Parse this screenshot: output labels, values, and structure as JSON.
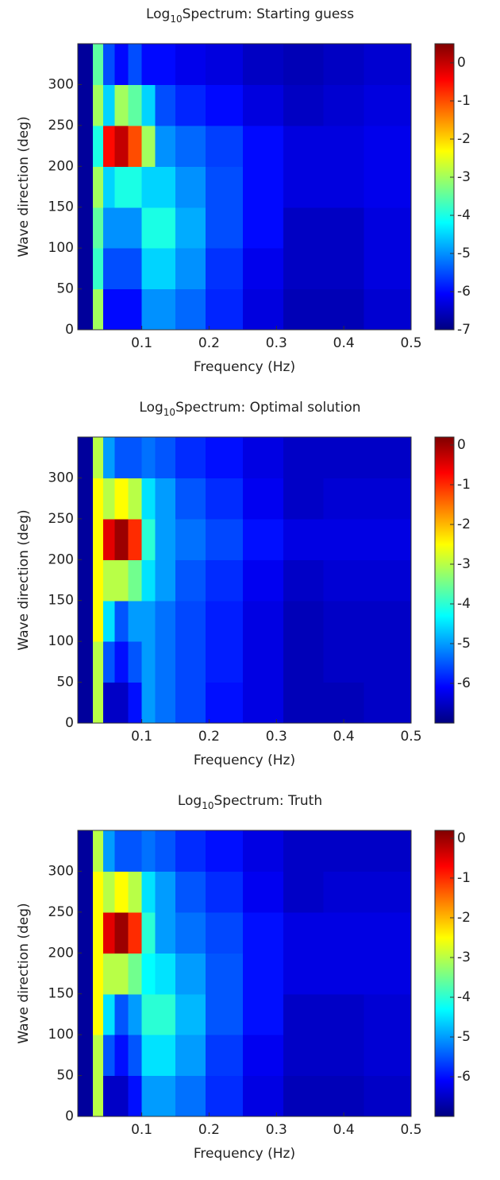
{
  "chart_data": [
    {
      "type": "heatmap",
      "title_prefix": "Log",
      "title_subscript": "10",
      "title": "Spectrum: Starting guess",
      "x_label": "Frequency (Hz)",
      "y_label": "Wave direction (deg)",
      "colormap": "jet",
      "x": [
        0.02,
        0.035,
        0.05,
        0.07,
        0.09,
        0.11,
        0.13,
        0.17,
        0.22,
        0.28,
        0.34,
        0.4,
        0.46
      ],
      "y": [
        25,
        75,
        125,
        175,
        225,
        275,
        325
      ],
      "z": [
        [
          -6.8,
          -3,
          -6,
          -6,
          -6,
          -5,
          -5,
          -5.3,
          -5.8,
          -6.3,
          -6.6,
          -6.6,
          -6.4
        ],
        [
          -6.8,
          -3.8,
          -5.5,
          -5.5,
          -5.5,
          -4.5,
          -4.5,
          -5,
          -5.7,
          -6.2,
          -6.5,
          -6.5,
          -6.3
        ],
        [
          -6.8,
          -3.5,
          -5,
          -5,
          -5,
          -4,
          -4,
          -4.8,
          -5.5,
          -6,
          -6.5,
          -6.5,
          -6.3
        ],
        [
          -6.8,
          -3,
          -4.5,
          -4,
          -4,
          -4.5,
          -4.5,
          -5,
          -5.5,
          -6,
          -6.3,
          -6.3,
          -6.2
        ],
        [
          -6.8,
          -4,
          -0.5,
          0,
          -1,
          -3,
          -5,
          -5.3,
          -5.6,
          -6,
          -6.3,
          -6.3,
          -6.2
        ],
        [
          -6.8,
          -3,
          -4.5,
          -3,
          -3.5,
          -4.5,
          -5.5,
          -5.8,
          -6,
          -6.3,
          -6.5,
          -6.4,
          -6.3
        ],
        [
          -6.8,
          -3.5,
          -5.5,
          -6,
          -5.5,
          -6,
          -6,
          -6.2,
          -6.3,
          -6.5,
          -6.6,
          -6.5,
          -6.4
        ]
      ],
      "xlim": [
        0.005,
        0.5
      ],
      "xticks": [
        0.1,
        0.2,
        0.3,
        0.4,
        0.5
      ],
      "ylim": [
        0,
        350
      ],
      "yticks": [
        0,
        50,
        100,
        150,
        200,
        250,
        300
      ],
      "clim": [
        -7,
        0.5
      ],
      "cticks": [
        0,
        -1,
        -2,
        -3,
        -4,
        -5,
        -6,
        -7
      ]
    },
    {
      "type": "heatmap",
      "title_prefix": "Log",
      "title_subscript": "10",
      "title": "Spectrum: Optimal solution",
      "x_label": "Frequency (Hz)",
      "y_label": "Wave direction (deg)",
      "colormap": "jet",
      "x": [
        0.02,
        0.035,
        0.05,
        0.07,
        0.09,
        0.11,
        0.13,
        0.17,
        0.22,
        0.28,
        0.34,
        0.4,
        0.46
      ],
      "y": [
        25,
        75,
        125,
        175,
        225,
        275,
        325
      ],
      "z": [
        [
          -6.8,
          -3,
          -6.5,
          -6.5,
          -6,
          -5,
          -5.3,
          -5.6,
          -6,
          -6.3,
          -6.6,
          -6.6,
          -6.5
        ],
        [
          -6.8,
          -3,
          -5.5,
          -6,
          -5.5,
          -5,
          -5.3,
          -5.6,
          -5.9,
          -6.3,
          -6.6,
          -6.5,
          -6.5
        ],
        [
          -6.8,
          -2.5,
          -4.5,
          -5.5,
          -5,
          -5,
          -5.3,
          -5.6,
          -5.9,
          -6.3,
          -6.6,
          -6.5,
          -6.5
        ],
        [
          -6.8,
          -2.5,
          -3,
          -3,
          -3.5,
          -4.5,
          -5,
          -5.5,
          -5.8,
          -6.2,
          -6.5,
          -6.4,
          -6.4
        ],
        [
          -6.8,
          -2.5,
          -0.5,
          0,
          -1,
          -4,
          -5,
          -5.3,
          -5.6,
          -6,
          -6.3,
          -6.3,
          -6.3
        ],
        [
          -6.8,
          -2.5,
          -3,
          -2.5,
          -3,
          -4.5,
          -5,
          -5.5,
          -5.8,
          -6.2,
          -6.5,
          -6.4,
          -6.4
        ],
        [
          -6.8,
          -3,
          -5,
          -5.5,
          -5.5,
          -5.3,
          -5.5,
          -5.8,
          -6,
          -6.3,
          -6.5,
          -6.5,
          -6.5
        ]
      ],
      "xlim": [
        0.005,
        0.5
      ],
      "xticks": [
        0.1,
        0.2,
        0.3,
        0.4,
        0.5
      ],
      "ylim": [
        0,
        350
      ],
      "yticks": [
        0,
        50,
        100,
        150,
        200,
        250,
        300
      ],
      "clim": [
        -7,
        0.2
      ],
      "cticks": [
        0,
        -1,
        -2,
        -3,
        -4,
        -5,
        -6
      ]
    },
    {
      "type": "heatmap",
      "title_prefix": "Log",
      "title_subscript": "10",
      "title": "Spectrum: Truth",
      "x_label": "Frequency (Hz)",
      "y_label": "Wave direction (deg)",
      "colormap": "jet",
      "x": [
        0.02,
        0.035,
        0.05,
        0.07,
        0.09,
        0.11,
        0.13,
        0.17,
        0.22,
        0.28,
        0.34,
        0.4,
        0.46
      ],
      "y": [
        25,
        75,
        125,
        175,
        225,
        275,
        325
      ],
      "z": [
        [
          -6.8,
          -3,
          -6.5,
          -6.5,
          -6,
          -5,
          -5,
          -5.3,
          -5.8,
          -6.3,
          -6.6,
          -6.6,
          -6.5
        ],
        [
          -6.8,
          -3,
          -5.5,
          -6,
          -5.5,
          -4.5,
          -4.5,
          -5,
          -5.7,
          -6.2,
          -6.5,
          -6.5,
          -6.4
        ],
        [
          -6.8,
          -2.5,
          -4.5,
          -5.5,
          -5,
          -4,
          -4,
          -4.8,
          -5.5,
          -6,
          -6.5,
          -6.5,
          -6.4
        ],
        [
          -6.8,
          -2.5,
          -3,
          -3,
          -3.5,
          -4.3,
          -4.5,
          -5,
          -5.5,
          -6,
          -6.3,
          -6.3,
          -6.3
        ],
        [
          -6.8,
          -2.5,
          -0.5,
          0,
          -1,
          -4,
          -5,
          -5.3,
          -5.6,
          -6,
          -6.3,
          -6.3,
          -6.3
        ],
        [
          -6.8,
          -2.5,
          -3,
          -2.5,
          -3,
          -4.5,
          -5,
          -5.5,
          -5.8,
          -6.2,
          -6.5,
          -6.4,
          -6.4
        ],
        [
          -6.8,
          -3,
          -5,
          -5.5,
          -5.5,
          -5.3,
          -5.5,
          -5.8,
          -6,
          -6.3,
          -6.5,
          -6.5,
          -6.5
        ]
      ],
      "xlim": [
        0.005,
        0.5
      ],
      "xticks": [
        0.1,
        0.2,
        0.3,
        0.4,
        0.5
      ],
      "ylim": [
        0,
        350
      ],
      "yticks": [
        0,
        50,
        100,
        150,
        200,
        250,
        300
      ],
      "clim": [
        -7,
        0.2
      ],
      "cticks": [
        0,
        -1,
        -2,
        -3,
        -4,
        -5,
        -6
      ]
    }
  ]
}
